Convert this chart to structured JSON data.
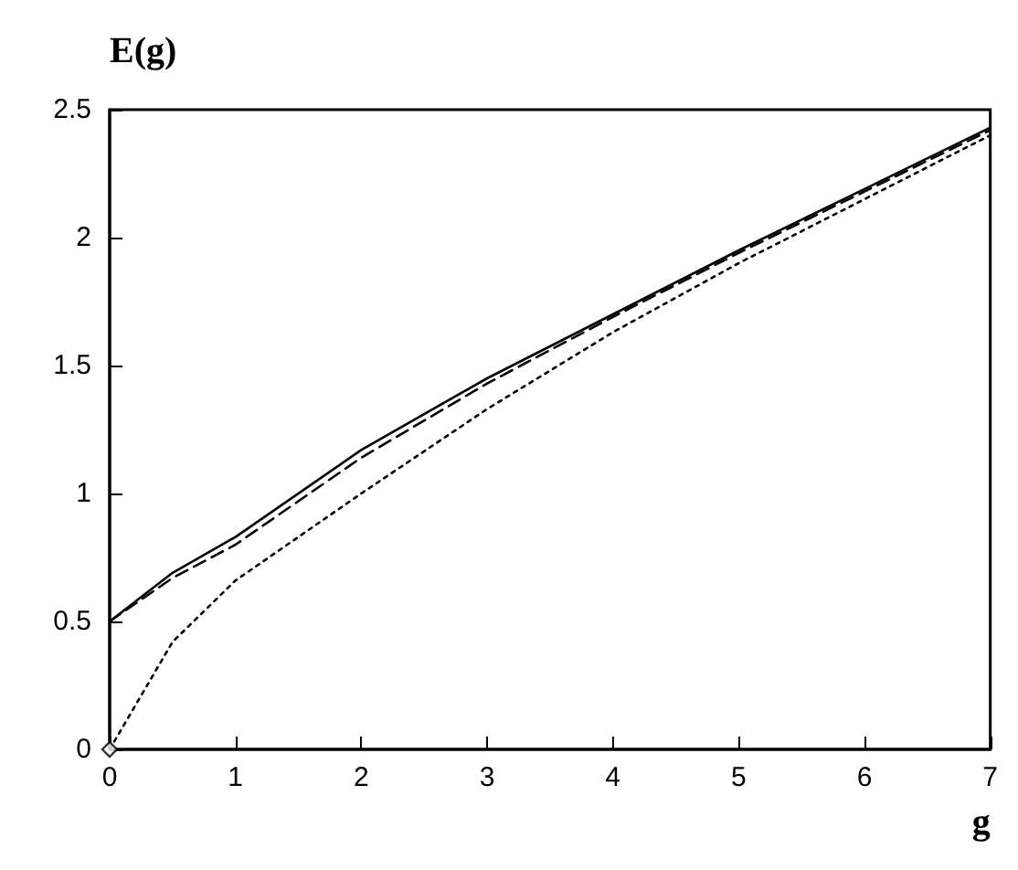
{
  "chart_data": {
    "type": "line",
    "xlabel": "g",
    "ylabel": "E(g)",
    "xlim": [
      0,
      7
    ],
    "ylim": [
      0,
      2.5
    ],
    "xticks": [
      0,
      1,
      2,
      3,
      4,
      5,
      6,
      7
    ],
    "yticks": [
      0,
      0.5,
      1,
      1.5,
      2,
      2.5
    ],
    "grid": false,
    "marker": "none",
    "series": [
      {
        "color": "#000000",
        "line_style": "solid",
        "x": [
          0,
          0.5,
          1,
          2,
          3,
          4,
          5,
          6,
          7
        ],
        "values": [
          0.5,
          0.69,
          0.83,
          1.17,
          1.45,
          1.7,
          1.95,
          2.19,
          2.43
        ]
      },
      {
        "color": "#000000",
        "line_style": "dashed",
        "x": [
          0,
          0.5,
          1,
          2,
          3,
          4,
          5,
          6,
          7
        ],
        "values": [
          0.5,
          0.67,
          0.8,
          1.14,
          1.43,
          1.69,
          1.94,
          2.18,
          2.42
        ]
      },
      {
        "color": "#000000",
        "line_style": "dotted",
        "x": [
          0,
          0.5,
          1,
          2,
          3,
          4,
          5,
          6,
          7
        ],
        "values": [
          0,
          0.42,
          0.66,
          1.0,
          1.33,
          1.63,
          1.9,
          2.15,
          2.4
        ]
      },
      {
        "type": "scatter",
        "color": "#000000",
        "marker": "diamond",
        "x": [
          0
        ],
        "values": [
          0
        ]
      }
    ]
  }
}
